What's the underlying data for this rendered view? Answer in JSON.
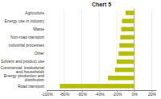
{
  "chart_data": {
    "type": "bar",
    "orientation": "horizontal",
    "title": "Chart 5",
    "categories": [
      "Road transport",
      "Energy production and distribution",
      "Commercial, institutional and households",
      "Solvent and product use",
      "Other",
      "Industrial processes",
      "Non-road transport",
      "Waste",
      "Energy use in industry",
      "Agriculture"
    ],
    "values": [
      -85,
      -30,
      -22,
      -20,
      -18,
      -17,
      -16,
      -15,
      -14,
      -10
    ],
    "color": "#b5bd00",
    "xlim": [
      -100,
      25
    ],
    "xticks": [
      {
        "value": -100,
        "label": "-100%"
      },
      {
        "value": -80,
        "label": "-80%"
      },
      {
        "value": -60,
        "label": "-60%"
      },
      {
        "value": -40,
        "label": "-40%"
      },
      {
        "value": -20,
        "label": "-20%"
      },
      {
        "value": 0,
        "label": "0%"
      },
      {
        "value": 20,
        "label": "20%"
      }
    ],
    "grid": true
  }
}
